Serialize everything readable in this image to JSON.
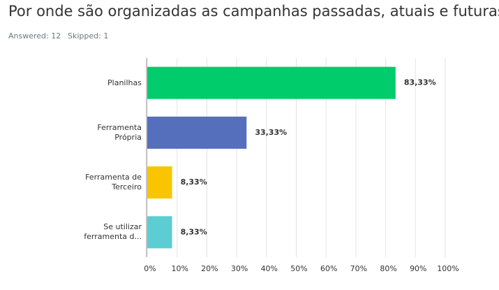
{
  "chart_data": {
    "type": "barh",
    "title": "Por onde são organizadas as campanhas passadas, atuais e futuras?",
    "answered": "Answered: 12",
    "skipped": "Skipped: 1",
    "categories": [
      "Planilhas",
      "Ferramenta Própria",
      "Ferramenta de Terceiro",
      "Se utilizar ferramenta d..."
    ],
    "values": [
      83.33,
      33.33,
      8.33,
      8.33
    ],
    "value_labels": [
      "83,33%",
      "33,33%",
      "8,33%",
      "8,33%"
    ],
    "colors": [
      "#00cc6c",
      "#566fbd",
      "#f8c500",
      "#5ccdd1"
    ],
    "xlim": [
      0,
      100
    ],
    "xticks": [
      {
        "value": 0,
        "label": "0%"
      },
      {
        "value": 10,
        "label": "10%"
      },
      {
        "value": 20,
        "label": "20%"
      },
      {
        "value": 30,
        "label": "30%"
      },
      {
        "value": 40,
        "label": "40%"
      },
      {
        "value": 50,
        "label": "50%"
      },
      {
        "value": 60,
        "label": "60%"
      },
      {
        "value": 70,
        "label": "70%"
      },
      {
        "value": 80,
        "label": "80%"
      },
      {
        "value": 90,
        "label": "90%"
      },
      {
        "value": 100,
        "label": "100%"
      }
    ],
    "grid": true
  }
}
